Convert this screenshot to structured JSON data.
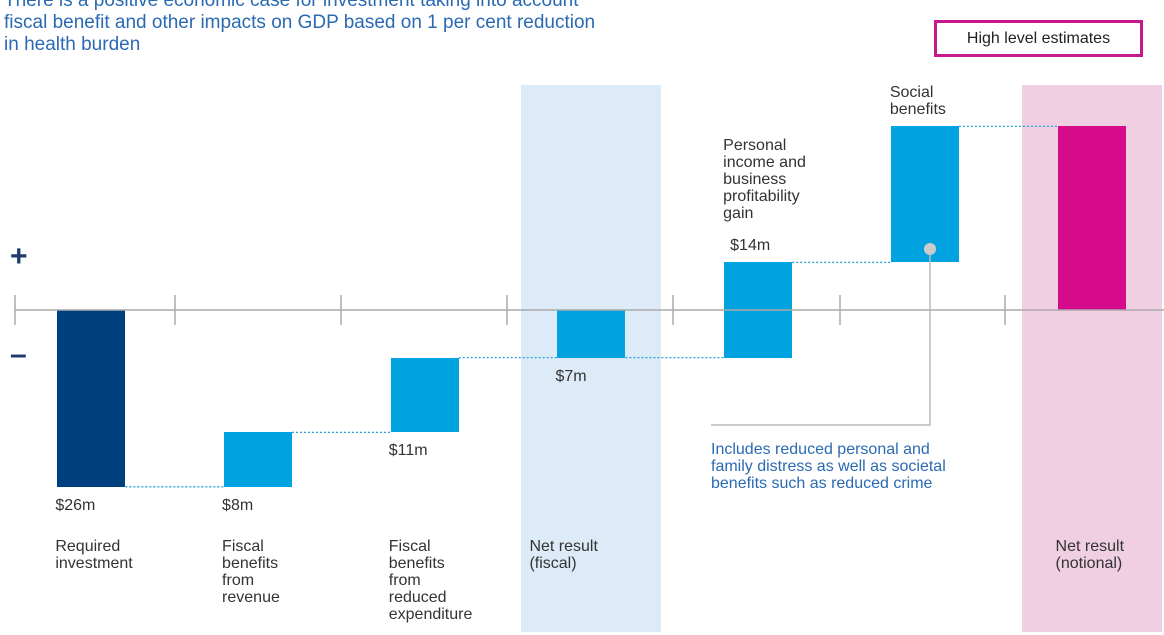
{
  "chart_data": {
    "type": "waterfall",
    "title": "There is a positive economic case for investment taking into account fiscal benefit and other impacts on GDP based on 1 per cent reduction in health burden",
    "badge": "High level estimates",
    "positive_sign": "+",
    "negative_sign": "–",
    "annotation": "Includes reduced personal and family distress as well as societal benefits such as reduced crime",
    "categories": [
      "Required investment",
      "Fiscal benefits from revenue",
      "Fiscal benefits from reduced expenditure",
      "Net result (fiscal)",
      "Personal income and business profitability gain",
      "Social benefits",
      "Net result (notional)"
    ],
    "values": [
      -26,
      8,
      11,
      -7,
      14,
      20,
      27
    ],
    "value_labels": [
      "$26m",
      "$8m",
      "$11m",
      "$7m",
      "$14m",
      null,
      null
    ],
    "colors": [
      "#003f7d",
      "#00a3e0",
      "#00a3e0",
      "#00a3e0",
      "#00a3e0",
      "#00a3e0",
      "#d60b8c"
    ],
    "totals": [
      3,
      6
    ],
    "highlight_colors": [
      "#dcebf7",
      "#f0cfe3"
    ]
  }
}
